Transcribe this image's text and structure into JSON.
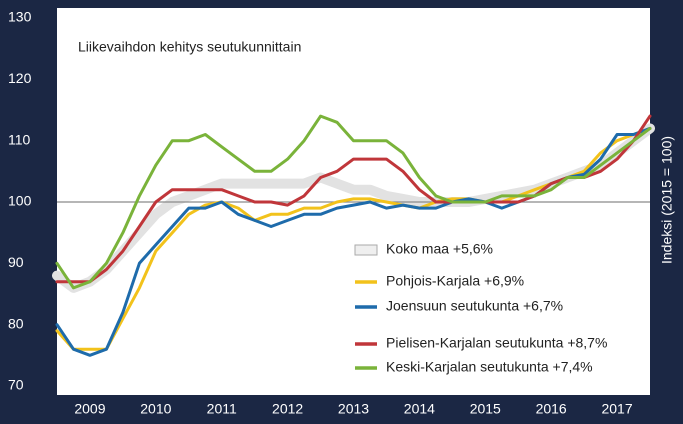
{
  "chart_data": {
    "type": "line",
    "title": "Liikevaihdon kehitys seutukunnittain",
    "y_label": "Indeksi (2015 = 100)",
    "x": [
      2009,
      2009.25,
      2009.5,
      2009.75,
      2010,
      2010.25,
      2010.5,
      2010.75,
      2011,
      2011.25,
      2011.5,
      2011.75,
      2012,
      2012.25,
      2012.5,
      2012.75,
      2013,
      2013.25,
      2013.5,
      2013.75,
      2014,
      2014.25,
      2014.5,
      2014.75,
      2015,
      2015.25,
      2015.5,
      2015.75,
      2016,
      2016.25,
      2016.5,
      2016.75,
      2017,
      2017.25,
      2017.5,
      2017.75,
      2018
    ],
    "xlim": [
      2009,
      2018
    ],
    "xticks": [
      {
        "value": 2009.5,
        "label": "2009"
      },
      {
        "value": 2010.5,
        "label": "2010"
      },
      {
        "value": 2011.5,
        "label": "2011"
      },
      {
        "value": 2012.5,
        "label": "2012"
      },
      {
        "value": 2013.5,
        "label": "2013"
      },
      {
        "value": 2014.5,
        "label": "2014"
      },
      {
        "value": 2015.5,
        "label": "2015"
      },
      {
        "value": 2016.5,
        "label": "2016"
      },
      {
        "value": 2017.5,
        "label": "2017"
      }
    ],
    "ylim": [
      70,
      130
    ],
    "yticks": [
      70,
      80,
      90,
      100,
      110,
      120,
      130
    ],
    "reference_line": 100,
    "series": [
      {
        "name": "Koko maa +5,6%",
        "color": "#e2e2e2",
        "band": true,
        "values": [
          88,
          86,
          87,
          89,
          92,
          95,
          98,
          100,
          101,
          102,
          103,
          103,
          103,
          103,
          103,
          103,
          104,
          103,
          102,
          102,
          101,
          100.5,
          100,
          100,
          100,
          100,
          100.5,
          101,
          101.5,
          102,
          103,
          104,
          105,
          106,
          108,
          110,
          112
        ]
      },
      {
        "name": "Pohjois-Karjala +6,9%",
        "color": "#f2c21b",
        "values": [
          79,
          76,
          76,
          76,
          81,
          86,
          92,
          95,
          98,
          99.5,
          100,
          99,
          97,
          98,
          98,
          99,
          99,
          100,
          100.5,
          100.5,
          100,
          99.5,
          99,
          100,
          100.5,
          100.5,
          100,
          100,
          101,
          102,
          103,
          104,
          105,
          108,
          110,
          111,
          112
        ]
      },
      {
        "name": "Joensuun seutukunta +6,7%",
        "color": "#1e6bab",
        "values": [
          80,
          76,
          75,
          76,
          82,
          90,
          93,
          96,
          99,
          99,
          100,
          98,
          97,
          96,
          97,
          98,
          98,
          99,
          99.5,
          100,
          99,
          99.5,
          99,
          99,
          100,
          100.5,
          100,
          99,
          100,
          101,
          103,
          104,
          104.5,
          107,
          111,
          111,
          112
        ]
      },
      {
        "name": "Pielisen-Karjalan seutukunta +8,7%",
        "color": "#c0363a",
        "values": [
          87,
          87,
          87,
          89,
          92,
          96,
          100,
          102,
          102,
          102,
          102,
          101,
          100,
          100,
          99.5,
          101,
          104,
          105,
          107,
          107,
          107,
          105,
          102,
          100,
          100,
          100,
          100,
          100,
          100,
          101,
          103,
          104,
          104,
          105,
          107,
          110,
          114
        ]
      },
      {
        "name": "Keski-Karjalan seutukunta +7,4%",
        "color": "#7ab33a",
        "values": [
          90,
          86,
          87,
          90,
          95,
          101,
          106,
          110,
          110,
          111,
          109,
          107,
          105,
          105,
          107,
          110,
          114,
          113,
          110,
          110,
          110,
          108,
          104,
          101,
          100,
          100,
          100,
          101,
          101,
          101,
          102,
          104,
          104,
          106,
          108,
          110,
          112
        ]
      }
    ]
  }
}
